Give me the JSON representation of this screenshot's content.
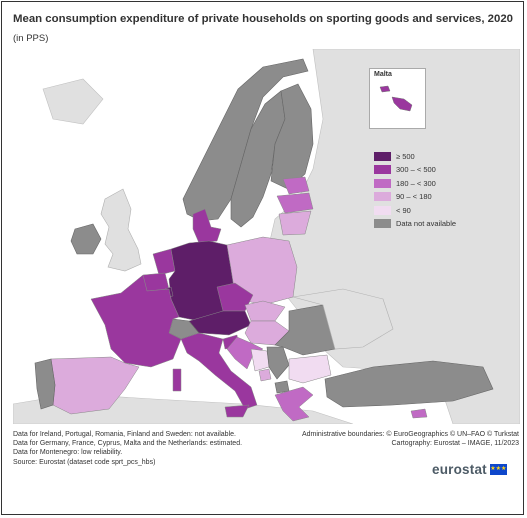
{
  "title": "Mean consumption expenditure of private households on sporting goods and services, 2020",
  "subtitle": "(in PPS)",
  "inset_label": "Malta",
  "legend": {
    "items": [
      {
        "label": "≥ 500",
        "color": "#5e1e68"
      },
      {
        "label": "300 – < 500",
        "color": "#9a379e"
      },
      {
        "label": "180 – < 300",
        "color": "#c06ac4"
      },
      {
        "label": "90 – < 180",
        "color": "#dcabdc"
      },
      {
        "label": "< 90",
        "color": "#f1dcf1"
      },
      {
        "label": "Data not available",
        "color": "#8c8c8c"
      }
    ]
  },
  "map_colors": {
    "water": "#ffffff",
    "land_non_eu": "#e0e0e0",
    "border": "#9a9a9a"
  },
  "countries": {
    "Norway": "Data not available",
    "Sweden": "Data not available",
    "Finland": "Data not available",
    "Ireland": "Data not available",
    "Portugal": "Data not available",
    "Romania": "Data not available",
    "Turkey": "Data not available",
    "Switzerland": "Data not available",
    "Serbia": "Data not available",
    "North Macedonia": "Data not available",
    "Germany": "≥ 500",
    "Austria": "≥ 500",
    "Luxembourg": "≥ 500",
    "France": "300 – < 500",
    "Netherlands": "300 – < 500",
    "Belgium": "300 – < 500",
    "Denmark": "300 – < 500",
    "Czechia": "300 – < 500",
    "Italy": "300 – < 500",
    "Slovenia": "300 – < 500",
    "Malta": "300 – < 500",
    "Estonia": "180 – < 300",
    "Latvia": "180 – < 300",
    "Greece": "180 – < 300",
    "Cyprus": "180 – < 300",
    "Croatia": "180 – < 300",
    "Spain": "90 – < 180",
    "Poland": "90 – < 180",
    "Hungary": "90 – < 180",
    "Slovakia": "90 – < 180",
    "Lithuania": "90 – < 180",
    "Montenegro": "90 – < 180",
    "Bulgaria": "< 90",
    "Bosnia and Herzegovina": "< 90"
  },
  "notes_left": [
    "Data for Ireland, Portugal, Romania, Finland and Sweden: not available.",
    "Data for Germany, France, Cyprus, Malta and the Netherlands: estimated.",
    "Data for Montenegro: low reliability.",
    "Source: Eurostat (dataset code sprt_pcs_hbs)"
  ],
  "notes_right": [
    "Administrative boundaries: © EuroGeographics © UN–FAO © Turkstat",
    "Cartography: Eurostat – IMAGE, 11/2023"
  ],
  "brand": {
    "name": "eurostat",
    "flag_icon": "eu-flag-icon"
  }
}
